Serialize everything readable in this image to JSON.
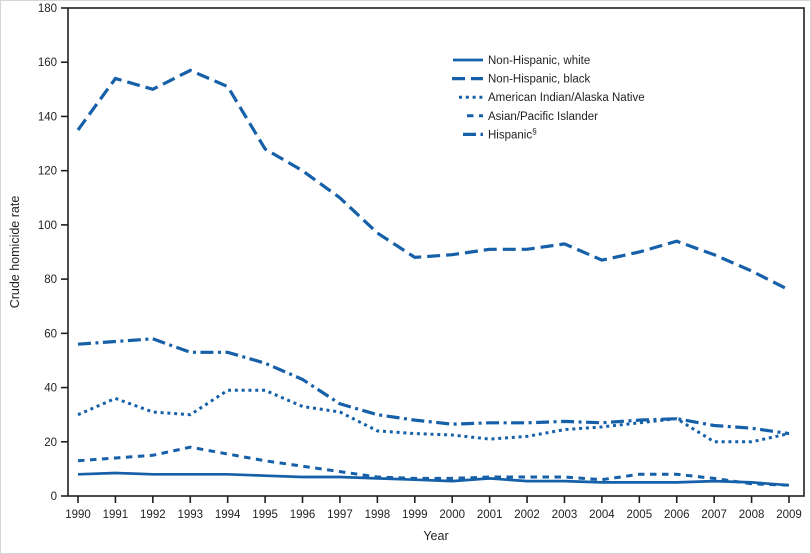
{
  "figure": {
    "y_axis_title": "Crude homicide rate",
    "x_axis_title": "Year"
  },
  "chart_data": {
    "type": "line",
    "title": "",
    "xlabel": "Year",
    "ylabel": "Crude homicide rate",
    "x": [
      1990,
      1991,
      1992,
      1993,
      1994,
      1995,
      1996,
      1997,
      1998,
      1999,
      2000,
      2001,
      2002,
      2003,
      2004,
      2005,
      2006,
      2007,
      2008,
      2009
    ],
    "ylim": [
      0,
      180
    ],
    "ytick_step": 20,
    "grid": false,
    "legend_position": "top-center",
    "line_color": "#1560a8",
    "text_color": "#231f20",
    "series": [
      {
        "name": "Non-Hispanic, white",
        "sup": "",
        "style": "solid",
        "values": [
          8,
          8.5,
          8,
          8,
          8,
          7.5,
          7,
          7,
          6.5,
          6,
          5.5,
          6.5,
          5.5,
          5.5,
          5,
          5,
          5,
          5.5,
          5,
          4
        ]
      },
      {
        "name": "Non-Hispanic, black",
        "sup": "",
        "style": "long-dash",
        "values": [
          135,
          154,
          150,
          157,
          151,
          128,
          120,
          110,
          97,
          88,
          89,
          91,
          91,
          93,
          87,
          90,
          94,
          89,
          83,
          76
        ]
      },
      {
        "name": "American Indian/Alaska Native",
        "sup": "",
        "style": "dotted",
        "values": [
          30,
          36,
          31,
          30,
          39,
          39,
          33,
          31,
          24,
          23,
          22.5,
          21,
          22,
          24.5,
          25.5,
          27,
          28.5,
          20,
          20,
          23
        ]
      },
      {
        "name": "Asian/Pacific Islander",
        "sup": "",
        "style": "dash",
        "values": [
          13,
          14,
          15,
          18,
          15.5,
          13,
          11,
          9,
          7,
          6.5,
          6.5,
          7,
          7,
          7,
          6,
          8,
          8,
          6.5,
          4.5,
          4
        ]
      },
      {
        "name": "Hispanic",
        "sup": "§",
        "style": "dash-dot",
        "values": [
          56,
          57,
          58,
          53,
          53,
          49,
          43,
          34,
          30,
          28,
          26.5,
          27,
          27,
          27.5,
          27,
          28,
          28.5,
          26,
          25,
          23
        ]
      }
    ]
  }
}
